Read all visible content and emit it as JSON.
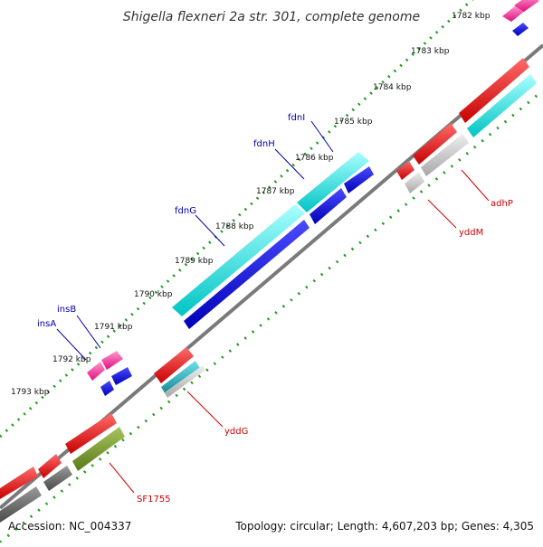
{
  "title": "Shigella flexneri 2a str. 301, complete genome",
  "footer": {
    "accession": "Accession: NC_004337",
    "summary": "Topology: circular; Length: 4,607,203 bp; Genes: 4,305"
  },
  "colors": {
    "backbone": "#7a7a7a",
    "tick_dots": "#229922",
    "forward_label": "#0000aa",
    "reverse_label": "#cc0000",
    "pink": "#ff2d9b",
    "blue": "#1010dd",
    "cyan": "#00e6e6",
    "red": "#ee0000",
    "light_gray": "#c0c0c0",
    "dark_gray": "#606060",
    "olive": "#77992c",
    "teal": "#18a7b5"
  },
  "ticks": [
    {
      "label": "1782 kbp"
    },
    {
      "label": "1783 kbp"
    },
    {
      "label": "1784 kbp"
    },
    {
      "label": "1785 kbp"
    },
    {
      "label": "1786 kbp"
    },
    {
      "label": "1787 kbp"
    },
    {
      "label": "1788 kbp"
    },
    {
      "label": "1789 kbp"
    },
    {
      "label": "1790 kbp"
    },
    {
      "label": "1791 kbp"
    },
    {
      "label": "1792 kbp"
    },
    {
      "label": "1793 kbp"
    }
  ],
  "gene_labels": [
    {
      "name": "fdnI",
      "strand": "forward"
    },
    {
      "name": "fdnH",
      "strand": "forward"
    },
    {
      "name": "fdnG",
      "strand": "forward"
    },
    {
      "name": "insB",
      "strand": "forward"
    },
    {
      "name": "insA",
      "strand": "forward"
    },
    {
      "name": "adhP",
      "strand": "reverse"
    },
    {
      "name": "yddM",
      "strand": "reverse"
    },
    {
      "name": "yddG",
      "strand": "reverse"
    },
    {
      "name": "SF1755",
      "strand": "reverse"
    }
  ],
  "gene_blocks": [
    {
      "name": "pink",
      "color": "pink"
    },
    {
      "name": "blue",
      "color": "blue"
    },
    {
      "name": "cyan",
      "color": "cyan"
    },
    {
      "name": "red",
      "color": "red"
    },
    {
      "name": "light-gray",
      "color": "light_gray"
    },
    {
      "name": "dark-gray",
      "color": "dark_gray"
    },
    {
      "name": "olive",
      "color": "olive"
    },
    {
      "name": "teal",
      "color": "teal"
    }
  ]
}
